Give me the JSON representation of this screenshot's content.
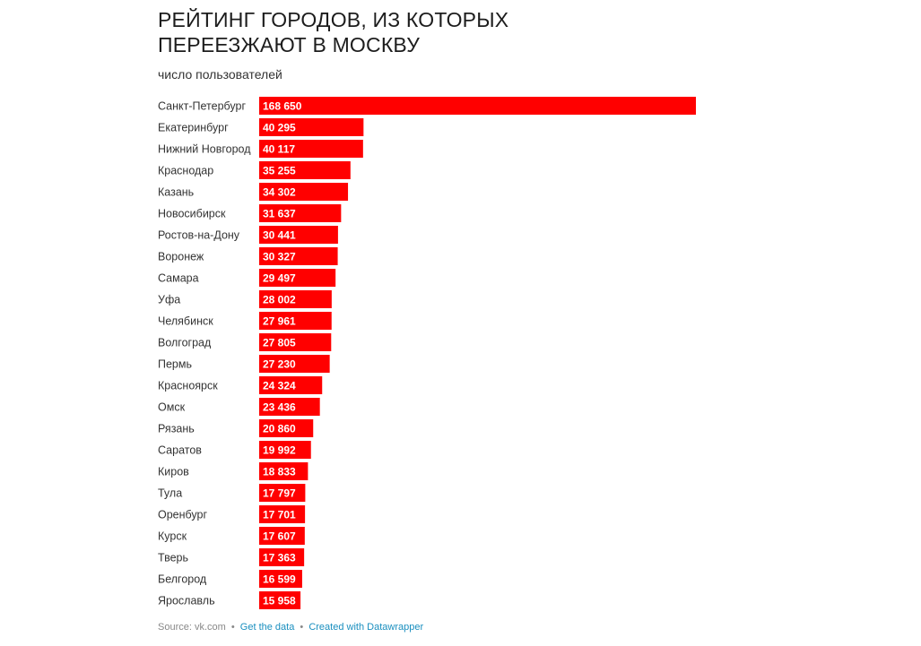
{
  "header": {
    "title": "РЕЙТИНГ ГОРОДОВ, ИЗ КОТОРЫХ ПЕРЕЕЗЖАЮТ В МОСКВУ",
    "subtitle": "число пользователей"
  },
  "footer": {
    "source": "Source: vk.com",
    "get_data": "Get the data",
    "created_with": "Created with Datawrapper",
    "separator": "•"
  },
  "colors": {
    "bar": "#ff0000",
    "link": "#1a8fbf"
  },
  "chart_data": {
    "type": "bar",
    "orientation": "horizontal",
    "title": "РЕЙТИНГ ГОРОДОВ, ИЗ КОТОРЫХ ПЕРЕЕЗЖАЮТ В МОСКВУ",
    "subtitle": "число пользователей",
    "xlim": [
      0,
      168650
    ],
    "grid": false,
    "categories": [
      "Санкт-Петербург",
      "Екатеринбург",
      "Нижний Новгород",
      "Краснодар",
      "Казань",
      "Новосибирск",
      "Ростов-на-Дону",
      "Воронеж",
      "Самара",
      "Уфа",
      "Челябинск",
      "Волгоград",
      "Пермь",
      "Красноярск",
      "Омск",
      "Рязань",
      "Саратов",
      "Киров",
      "Тула",
      "Оренбург",
      "Курск",
      "Тверь",
      "Белгород",
      "Ярославль"
    ],
    "values": [
      168650,
      40295,
      40117,
      35255,
      34302,
      31637,
      30441,
      30327,
      29497,
      28002,
      27961,
      27805,
      27230,
      24324,
      23436,
      20860,
      19992,
      18833,
      17797,
      17701,
      17607,
      17363,
      16599,
      15958
    ],
    "value_labels": [
      "168 650",
      "40 295",
      "40 117",
      "35 255",
      "34 302",
      "31 637",
      "30 441",
      "30 327",
      "29 497",
      "28 002",
      "27 961",
      "27 805",
      "27 230",
      "24 324",
      "23 436",
      "20 860",
      "19 992",
      "18 833",
      "17 797",
      "17 701",
      "17 607",
      "17 363",
      "16 599",
      "15 958"
    ]
  }
}
